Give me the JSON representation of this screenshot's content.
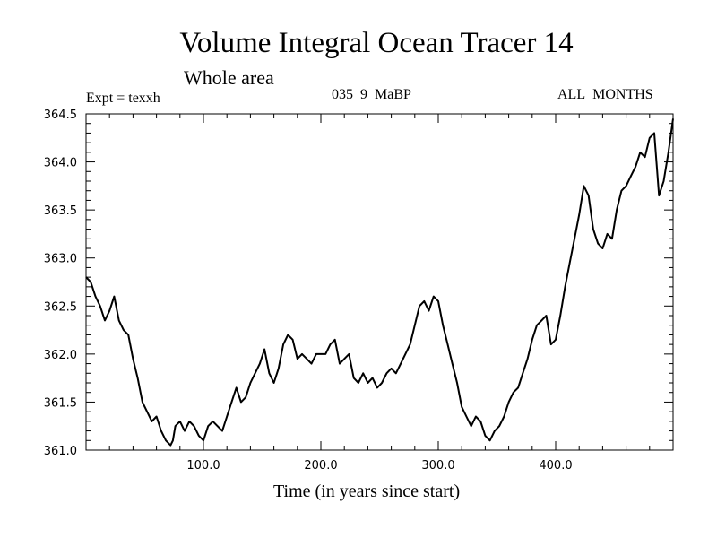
{
  "header": {
    "title": "Volume Integral Ocean Tracer 14",
    "subtitle": "Whole area",
    "expt": "Expt = texxh",
    "run": "035_9_MaBP",
    "period": "ALL_MONTHS"
  },
  "chart_data": {
    "type": "line",
    "title": "Volume Integral Ocean Tracer 14",
    "subtitle": "Whole area",
    "xlabel": "Time (in years since start)",
    "ylabel": "",
    "xlim": [
      0,
      500
    ],
    "ylim": [
      361.0,
      364.5
    ],
    "x_ticks": [
      "100.0",
      "200.0",
      "300.0",
      "400.0"
    ],
    "y_ticks": [
      "361.0",
      "361.5",
      "362.0",
      "362.5",
      "363.0",
      "363.5",
      "364.0",
      "364.5"
    ],
    "grid": false,
    "line_color": "#000000",
    "series": [
      {
        "x": [
          0,
          4,
          8,
          12,
          16,
          20,
          24,
          28,
          32,
          36,
          40,
          44,
          48,
          52,
          56,
          60,
          64,
          68,
          72,
          74,
          76,
          80,
          84,
          88,
          92,
          96,
          100,
          104,
          108,
          112,
          116,
          120,
          124,
          128,
          132,
          136,
          140,
          144,
          148,
          152,
          156,
          160,
          164,
          168,
          172,
          176,
          180,
          184,
          188,
          192,
          196,
          200,
          204,
          208,
          212,
          216,
          220,
          224,
          228,
          232,
          236,
          240,
          244,
          248,
          252,
          256,
          260,
          264,
          268,
          272,
          276,
          280,
          284,
          288,
          292,
          296,
          300,
          304,
          308,
          312,
          316,
          320,
          324,
          328,
          332,
          336,
          340,
          344,
          348,
          352,
          356,
          360,
          364,
          368,
          372,
          376,
          380,
          384,
          388,
          392,
          396,
          400,
          404,
          408,
          412,
          416,
          420,
          424,
          428,
          432,
          436,
          440,
          444,
          448,
          452,
          456,
          460,
          464,
          468,
          472,
          476,
          480,
          484,
          488,
          492,
          496,
          500
        ],
        "values": [
          362.8,
          362.75,
          362.6,
          362.5,
          362.35,
          362.45,
          362.6,
          362.35,
          362.25,
          362.2,
          361.95,
          361.75,
          361.5,
          361.4,
          361.3,
          361.35,
          361.2,
          361.1,
          361.05,
          361.1,
          361.25,
          361.3,
          361.2,
          361.3,
          361.25,
          361.15,
          361.1,
          361.25,
          361.3,
          361.25,
          361.2,
          361.35,
          361.5,
          361.65,
          361.5,
          361.55,
          361.7,
          361.8,
          361.9,
          362.05,
          361.8,
          361.7,
          361.85,
          362.1,
          362.2,
          362.15,
          361.95,
          362.0,
          361.95,
          361.9,
          362.0,
          362.0,
          362.0,
          362.1,
          362.15,
          361.9,
          361.95,
          362.0,
          361.75,
          361.7,
          361.8,
          361.7,
          361.75,
          361.65,
          361.7,
          361.8,
          361.85,
          361.8,
          361.9,
          362.0,
          362.1,
          362.3,
          362.5,
          362.55,
          362.45,
          362.6,
          362.55,
          362.3,
          362.1,
          361.9,
          361.7,
          361.45,
          361.35,
          361.25,
          361.35,
          361.3,
          361.15,
          361.1,
          361.2,
          361.25,
          361.35,
          361.5,
          361.6,
          361.65,
          361.8,
          361.95,
          362.15,
          362.3,
          362.35,
          362.4,
          362.1,
          362.15,
          362.4,
          362.7,
          362.95,
          363.2,
          363.45,
          363.75,
          363.65,
          363.3,
          363.15,
          363.1,
          363.25,
          363.2,
          363.5,
          363.7,
          363.75,
          363.85,
          363.95,
          364.1,
          364.05,
          364.25,
          364.3,
          363.65,
          363.8,
          364.1,
          364.45
        ]
      }
    ]
  }
}
